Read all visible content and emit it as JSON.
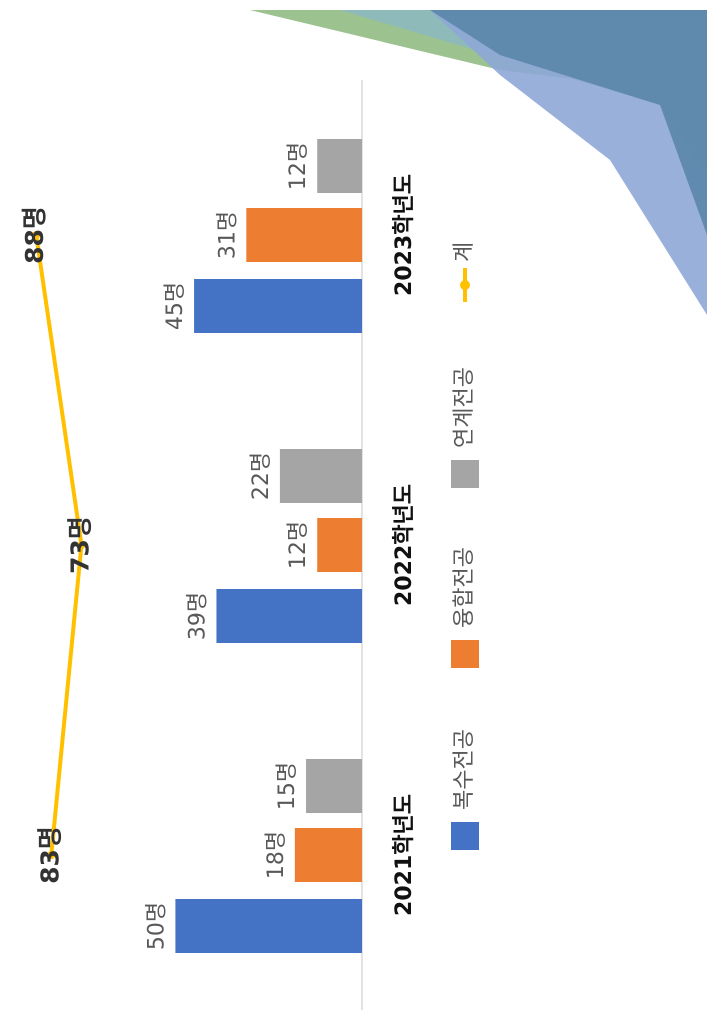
{
  "chart_data": {
    "type": "bar",
    "categories": [
      "2021학년도",
      "2022학년도",
      "2023학년도"
    ],
    "series": [
      {
        "name": "복수전공",
        "color": "#4472c4",
        "values": [
          50,
          39,
          45
        ],
        "value_labels": [
          "50명",
          "39명",
          "45명"
        ]
      },
      {
        "name": "융합전공",
        "color": "#ed7d31",
        "values": [
          18,
          12,
          31
        ],
        "value_labels": [
          "18명",
          "12명",
          "31명"
        ]
      },
      {
        "name": "연계전공",
        "color": "#a5a5a5",
        "values": [
          15,
          22,
          12
        ],
        "value_labels": [
          "15명",
          "22명",
          "12명"
        ]
      },
      {
        "name": "계",
        "type": "line",
        "axis": "y2",
        "color": "#ffc000",
        "values": [
          83,
          73,
          88
        ],
        "value_labels": [
          "83명",
          "73명",
          "88명"
        ]
      }
    ],
    "ylim": [
      0,
      97
    ],
    "y2lim": [
      -20,
      100
    ],
    "legend": "bottom",
    "rotation": -90
  }
}
